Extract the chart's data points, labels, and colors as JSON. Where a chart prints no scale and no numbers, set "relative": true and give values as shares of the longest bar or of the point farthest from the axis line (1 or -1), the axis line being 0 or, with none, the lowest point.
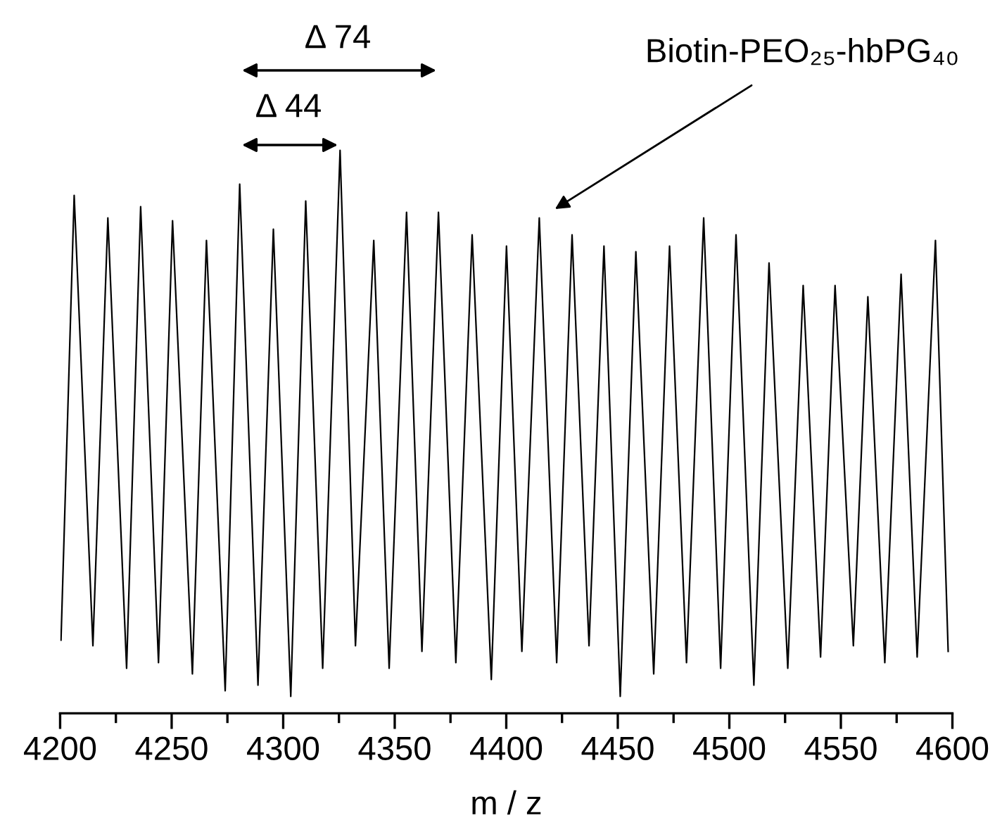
{
  "chart_data": {
    "type": "line",
    "xlabel": "m / z",
    "relative": true,
    "xlim": [
      4200,
      4600
    ],
    "xticks": [
      4200,
      {
        "value": 4225,
        "label": null
      },
      4250,
      {
        "value": 4275,
        "label": null
      },
      4300,
      {
        "value": 4325,
        "label": null
      },
      4350,
      {
        "value": 4375,
        "label": null
      },
      4400,
      {
        "value": 4425,
        "label": null
      },
      4450,
      {
        "value": 4475,
        "label": null
      },
      4500,
      {
        "value": 4525,
        "label": null
      },
      4550,
      {
        "value": 4575,
        "label": null
      },
      4600
    ],
    "grid": false,
    "legend": false,
    "marker": "none",
    "line_style": "solid",
    "tick_labels": "x",
    "annotations": [
      "Δ 74",
      "Δ 44",
      "Biotin-PEO₂₅-hbPG₄₀"
    ],
    "series": [
      {
        "color": "#000000",
        "x": [
          4200.4,
          4206.3,
          4214.7,
          4221.4,
          4229.8,
          4236.1,
          4244.1,
          4250.4,
          4259.3,
          4265.6,
          4274.0,
          4280.5,
          4288.7,
          4295.6,
          4303.4,
          4310.1,
          4317.7,
          4325.5,
          4332.4,
          4340.6,
          4347.5,
          4355.3,
          4362.2,
          4369.6,
          4377.4,
          4384.7,
          4393.3,
          4400.1,
          4407.0,
          4414.8,
          4422.6,
          4429.5,
          4437.1,
          4443.8,
          4451.1,
          4458.1,
          4466.1,
          4473.2,
          4480.8,
          4488.5,
          4496.1,
          4503.0,
          4511.0,
          4517.8,
          4526.2,
          4533.1,
          4540.9,
          4547.4,
          4555.6,
          4562.1,
          4569.7,
          4577.0,
          4584.2,
          4592.4,
          4598.1
        ],
        "values": [
          0.13,
          0.92,
          0.12,
          0.88,
          0.08,
          0.9,
          0.09,
          0.875,
          0.07,
          0.84,
          0.04,
          0.94,
          0.05,
          0.86,
          0.03,
          0.91,
          0.08,
          1.0,
          0.12,
          0.84,
          0.08,
          0.89,
          0.11,
          0.89,
          0.09,
          0.85,
          0.06,
          0.83,
          0.11,
          0.88,
          0.09,
          0.85,
          0.12,
          0.83,
          0.03,
          0.82,
          0.07,
          0.83,
          0.09,
          0.88,
          0.08,
          0.85,
          0.05,
          0.8,
          0.08,
          0.76,
          0.1,
          0.76,
          0.12,
          0.74,
          0.09,
          0.78,
          0.1,
          0.84,
          0.11
        ]
      }
    ]
  }
}
